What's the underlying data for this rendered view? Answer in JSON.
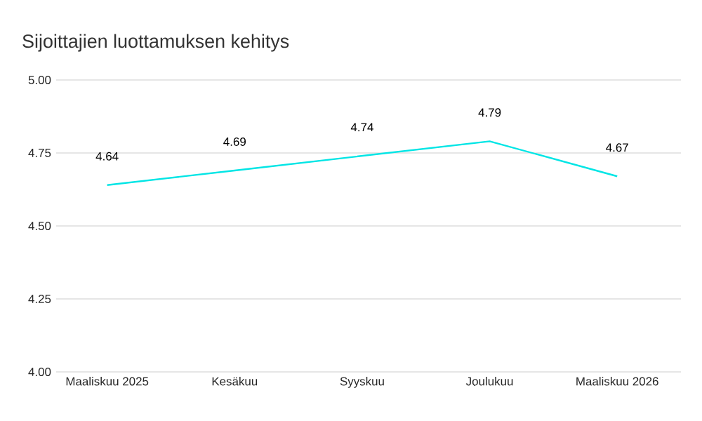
{
  "chart_data": {
    "type": "line",
    "title": "Sijoittajien luottamuksen kehitys",
    "categories": [
      "Maaliskuu 2025",
      "Kesäkuu",
      "Syyskuu",
      "Joulukuu",
      "Maaliskuu 2026"
    ],
    "values": [
      4.64,
      4.69,
      4.74,
      4.79,
      4.67
    ],
    "color": "#00e5e5",
    "ylim": [
      4.0,
      5.0
    ],
    "yticks": [
      {
        "value": 4.0,
        "label": "4.00"
      },
      {
        "value": 4.25,
        "label": "4.25"
      },
      {
        "value": 4.5,
        "label": "4.50"
      },
      {
        "value": 4.75,
        "label": "4.75"
      },
      {
        "value": 5.0,
        "label": "5.00"
      }
    ],
    "grid": "y",
    "data_labels": true,
    "marker": "none",
    "line_style": "solid"
  }
}
